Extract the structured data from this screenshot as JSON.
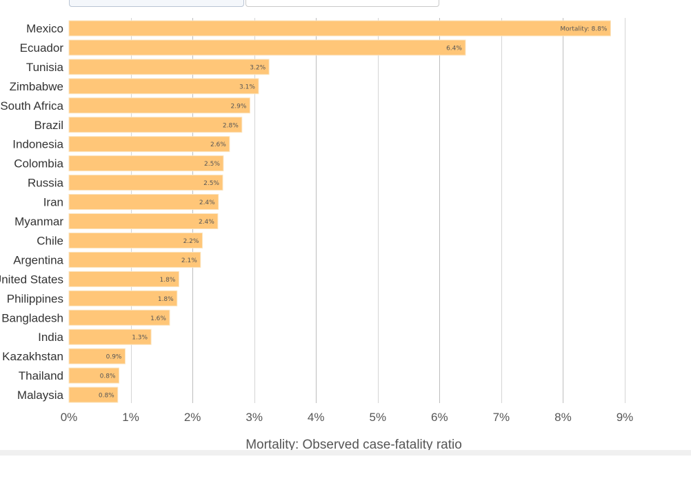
{
  "tabs": [
    {
      "label": ""
    },
    {
      "label": ""
    }
  ],
  "chart_data": {
    "type": "bar",
    "orientation": "horizontal",
    "categories": [
      "Mexico",
      "Ecuador",
      "Tunisia",
      "Zimbabwe",
      "South Africa",
      "Brazil",
      "Indonesia",
      "Colombia",
      "Russia",
      "Iran",
      "Myanmar",
      "Chile",
      "Argentina",
      "United States",
      "Philippines",
      "Bangladesh",
      "India",
      "Kazakhstan",
      "Thailand",
      "Malaysia"
    ],
    "values": [
      8.77,
      6.42,
      3.24,
      3.07,
      2.93,
      2.8,
      2.6,
      2.5,
      2.49,
      2.42,
      2.41,
      2.16,
      2.13,
      1.78,
      1.75,
      1.63,
      1.33,
      0.91,
      0.81,
      0.79
    ],
    "value_labels": [
      "Mortality: 8.8%",
      "6.4%",
      "3.2%",
      "3.1%",
      "2.9%",
      "2.8%",
      "2.6%",
      "2.5%",
      "2.5%",
      "2.4%",
      "2.4%",
      "2.2%",
      "2.1%",
      "1.8%",
      "1.8%",
      "1.6%",
      "1.3%",
      "0.9%",
      "0.8%",
      "0.8%"
    ],
    "xticks": [
      0,
      1,
      2,
      3,
      4,
      5,
      6,
      7,
      8,
      9
    ],
    "xtick_labels": [
      "0%",
      "1%",
      "2%",
      "3%",
      "4%",
      "5%",
      "6%",
      "7%",
      "8%",
      "9%"
    ],
    "xlim": [
      0,
      9
    ],
    "xlabel": "Mortality: Observed case-fatality ratio",
    "grid": true,
    "colors": {
      "bar": "#ffc678",
      "bar_edge": "#fbe4bf",
      "grid": "#d4d4d4",
      "grid_major": "#bdbdbd"
    }
  }
}
